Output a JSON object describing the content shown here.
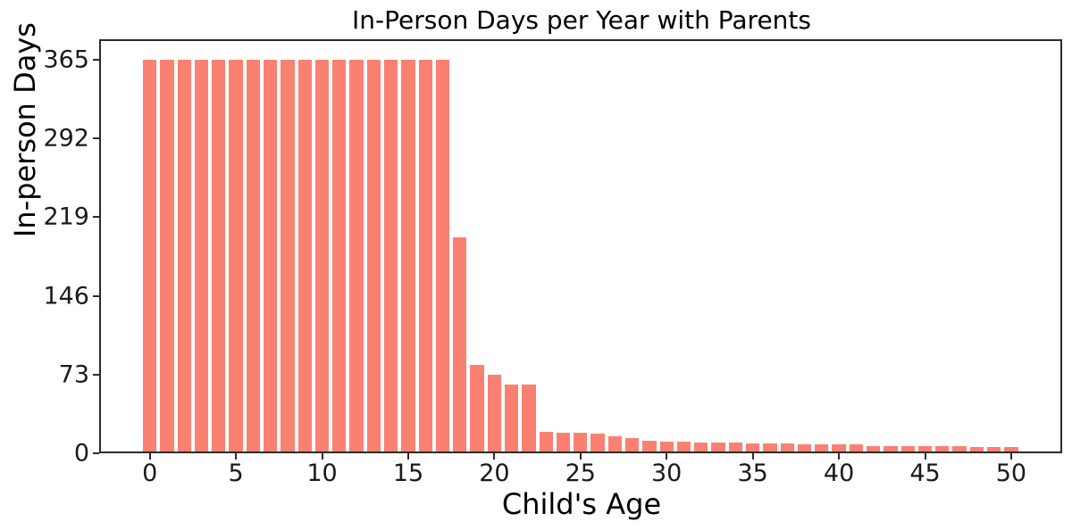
{
  "chart_data": {
    "type": "bar",
    "title": "In-Person Days per Year with Parents",
    "xlabel": "Child's Age",
    "ylabel": "In-person Days",
    "bar_color": "#FA8072",
    "axis_color": "#2b2b2b",
    "grid": false,
    "legend": null,
    "xlim": [
      -2.94,
      52.96
    ],
    "ylim": [
      0,
      384.1
    ],
    "xticks": [
      0,
      5,
      10,
      15,
      20,
      25,
      30,
      35,
      40,
      45,
      50
    ],
    "yticks": [
      0,
      73,
      146,
      219,
      292,
      365
    ],
    "x": [
      0,
      1,
      2,
      3,
      4,
      5,
      6,
      7,
      8,
      9,
      10,
      11,
      12,
      13,
      14,
      15,
      16,
      17,
      18,
      19,
      20,
      21,
      22,
      23,
      24,
      25,
      26,
      27,
      28,
      29,
      30,
      31,
      32,
      33,
      34,
      35,
      36,
      37,
      38,
      39,
      40,
      41,
      42,
      43,
      44,
      45,
      46,
      47,
      48,
      49,
      50
    ],
    "values": [
      365,
      365,
      365,
      365,
      365,
      365,
      365,
      365,
      365,
      365,
      365,
      365,
      365,
      365,
      365,
      365,
      365,
      365,
      200,
      82,
      73,
      64,
      64,
      20,
      19,
      19,
      18,
      16,
      14,
      12,
      11,
      11,
      10,
      10,
      10,
      9,
      9,
      9,
      8,
      8,
      8,
      8,
      7,
      7,
      7,
      7,
      7,
      7,
      6,
      6,
      6
    ]
  }
}
